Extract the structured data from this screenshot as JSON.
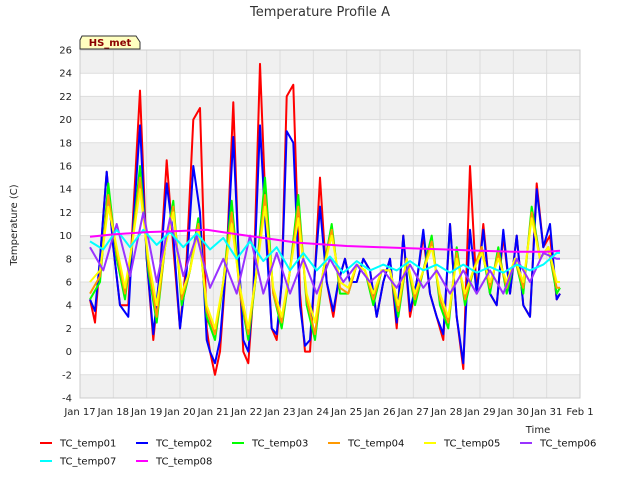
{
  "chart_data": {
    "type": "line",
    "title": "Temperature Profile A",
    "xlabel": "Time",
    "ylabel": "Temperature (C)",
    "badge": "HS_met",
    "ylim": [
      -4,
      26
    ],
    "yticks": [
      -4,
      -2,
      0,
      2,
      4,
      6,
      8,
      10,
      12,
      14,
      16,
      18,
      20,
      22,
      24,
      26
    ],
    "xlim": [
      0,
      15
    ],
    "xticks": [
      "Jan 17",
      "Jan 18",
      "Jan 19",
      "Jan 20",
      "Jan 21",
      "Jan 22",
      "Jan 23",
      "Jan 24",
      "Jan 25",
      "Jan 26",
      "Jan 27",
      "Jan 28",
      "Jan 29",
      "Jan 30",
      "Jan 31",
      "Feb 1"
    ],
    "grid": true,
    "legend_position": "bottom",
    "series": [
      {
        "name": "TC_temp01",
        "color": "#ff0000",
        "x": [
          0.3,
          0.45,
          0.6,
          0.8,
          1.0,
          1.2,
          1.45,
          1.6,
          1.8,
          2.0,
          2.2,
          2.4,
          2.6,
          2.8,
          3.0,
          3.2,
          3.4,
          3.6,
          3.8,
          3.9,
          4.05,
          4.2,
          4.4,
          4.6,
          4.75,
          4.9,
          5.05,
          5.2,
          5.4,
          5.6,
          5.75,
          5.9,
          6.05,
          6.2,
          6.4,
          6.6,
          6.75,
          6.9,
          7.05,
          7.2,
          7.4,
          7.6,
          7.75,
          7.95,
          8.1,
          8.3,
          8.5,
          8.7,
          8.9,
          9.1,
          9.3,
          9.5,
          9.7,
          9.9,
          10.1,
          10.3,
          10.5,
          10.7,
          10.9,
          11.1,
          11.3,
          11.5,
          11.7,
          11.9,
          12.1,
          12.3,
          12.5,
          12.7,
          12.9,
          13.1,
          13.3,
          13.5,
          13.7,
          13.9,
          14.1,
          14.3,
          14.4
        ],
        "values": [
          4.5,
          2.5,
          8,
          15.5,
          9,
          4,
          4,
          12,
          22.5,
          8,
          1,
          7,
          16.5,
          9,
          2,
          8,
          20,
          21,
          2,
          0,
          -2,
          0,
          8,
          21.5,
          9,
          0,
          -1,
          5,
          24.8,
          10,
          2,
          1,
          6,
          22,
          23,
          5,
          0,
          0,
          7,
          15,
          6,
          3,
          6,
          8,
          6,
          6,
          8,
          7,
          3,
          6,
          8,
          2,
          10,
          3,
          6,
          10,
          5,
          3,
          1,
          11,
          3,
          -1.5,
          16,
          5,
          11,
          5,
          4,
          10,
          5,
          10,
          4,
          3,
          14.5,
          9,
          10,
          4.5,
          5
        ]
      },
      {
        "name": "TC_temp02",
        "color": "#0000ff",
        "x": [
          0.3,
          0.45,
          0.6,
          0.8,
          1.0,
          1.2,
          1.45,
          1.6,
          1.8,
          2.0,
          2.2,
          2.4,
          2.6,
          2.8,
          3.0,
          3.2,
          3.4,
          3.6,
          3.8,
          3.9,
          4.05,
          4.2,
          4.4,
          4.6,
          4.75,
          4.9,
          5.05,
          5.2,
          5.4,
          5.6,
          5.75,
          5.9,
          6.05,
          6.2,
          6.4,
          6.6,
          6.75,
          6.9,
          7.05,
          7.2,
          7.4,
          7.6,
          7.75,
          7.95,
          8.1,
          8.3,
          8.5,
          8.7,
          8.9,
          9.1,
          9.3,
          9.5,
          9.7,
          9.9,
          10.1,
          10.3,
          10.5,
          10.7,
          10.9,
          11.1,
          11.3,
          11.5,
          11.7,
          11.9,
          12.1,
          12.3,
          12.5,
          12.7,
          12.9,
          13.1,
          13.3,
          13.5,
          13.7,
          13.9,
          14.1,
          14.3,
          14.4
        ],
        "values": [
          4.5,
          3.5,
          8,
          15.5,
          9,
          4,
          3,
          11,
          19.5,
          8,
          1.5,
          7,
          14.5,
          10,
          2,
          7,
          16,
          12,
          1,
          0,
          -1,
          1,
          8,
          18.5,
          9,
          1,
          0,
          5,
          19.5,
          9,
          2,
          1.5,
          6,
          19,
          18,
          4,
          0.5,
          1,
          7,
          12.5,
          6,
          3.5,
          6,
          8,
          6,
          6,
          8,
          7,
          3,
          6,
          8,
          2.5,
          10,
          3.5,
          6,
          10.5,
          5,
          3,
          1.5,
          11,
          3,
          -1,
          10.5,
          5,
          10.5,
          5,
          4,
          10.5,
          5,
          10,
          4,
          3,
          14,
          9,
          11,
          4.5,
          5
        ]
      },
      {
        "name": "TC_temp03",
        "color": "#00ff00",
        "x": [
          0.3,
          0.6,
          0.85,
          1.1,
          1.35,
          1.55,
          1.8,
          2.05,
          2.3,
          2.55,
          2.8,
          3.05,
          3.3,
          3.55,
          3.8,
          4.05,
          4.3,
          4.55,
          4.8,
          5.05,
          5.3,
          5.55,
          5.8,
          6.05,
          6.3,
          6.55,
          6.8,
          7.05,
          7.3,
          7.55,
          7.8,
          8.05,
          8.3,
          8.55,
          8.8,
          9.05,
          9.3,
          9.55,
          9.8,
          10.05,
          10.3,
          10.55,
          10.8,
          11.05,
          11.3,
          11.55,
          11.8,
          12.05,
          12.3,
          12.55,
          12.8,
          13.05,
          13.3,
          13.55,
          13.8,
          14.05,
          14.3,
          14.4
        ],
        "values": [
          4.5,
          6,
          14.5,
          8,
          4.5,
          9,
          16,
          7,
          2.5,
          9,
          13,
          4,
          7,
          11.5,
          3,
          1,
          6,
          13,
          5,
          1,
          7,
          15,
          5,
          2,
          7,
          13.5,
          4,
          1,
          7,
          11,
          5,
          5,
          7.5,
          7,
          4,
          7,
          7,
          3,
          8,
          4,
          7,
          10,
          4,
          2,
          9,
          4,
          7,
          9,
          5,
          9,
          5,
          8,
          5,
          12.5,
          8,
          9,
          5,
          5.5
        ]
      },
      {
        "name": "TC_temp04",
        "color": "#ff9900",
        "x": [
          0.3,
          0.6,
          0.85,
          1.1,
          1.35,
          1.55,
          1.8,
          2.05,
          2.3,
          2.55,
          2.8,
          3.05,
          3.3,
          3.55,
          3.8,
          4.05,
          4.3,
          4.55,
          4.8,
          5.05,
          5.3,
          5.55,
          5.8,
          6.05,
          6.3,
          6.55,
          6.8,
          7.05,
          7.3,
          7.55,
          7.8,
          8.05,
          8.3,
          8.55,
          8.8,
          9.05,
          9.3,
          9.55,
          9.8,
          10.05,
          10.3,
          10.55,
          10.8,
          11.05,
          11.3,
          11.55,
          11.8,
          12.05,
          12.3,
          12.55,
          12.8,
          13.05,
          13.3,
          13.55,
          13.8,
          14.05,
          14.3,
          14.4
        ],
        "values": [
          5,
          6.5,
          13.5,
          8.5,
          5,
          9,
          15,
          7.5,
          3,
          9,
          12.5,
          4.5,
          7,
          11,
          3.5,
          1.5,
          6,
          12,
          5,
          1.5,
          7,
          13.5,
          5,
          2.5,
          7,
          12.5,
          4.5,
          1.5,
          7,
          10.5,
          5.5,
          5,
          7.5,
          7,
          4.5,
          7,
          7,
          3.5,
          8,
          4.5,
          7,
          9.5,
          4.5,
          2.5,
          8.5,
          4.5,
          7,
          9,
          5.5,
          8.5,
          5.5,
          8,
          5.5,
          12,
          8,
          9,
          5.5,
          5.5
        ]
      },
      {
        "name": "TC_temp05",
        "color": "#ffff00",
        "x": [
          0.3,
          0.6,
          0.85,
          1.1,
          1.35,
          1.55,
          1.8,
          2.05,
          2.3,
          2.55,
          2.8,
          3.05,
          3.3,
          3.55,
          3.8,
          4.05,
          4.3,
          4.55,
          4.8,
          5.05,
          5.3,
          5.55,
          5.8,
          6.05,
          6.3,
          6.55,
          6.8,
          7.05,
          7.3,
          7.55,
          7.8,
          8.05,
          8.3,
          8.55,
          8.8,
          9.05,
          9.3,
          9.55,
          9.8,
          10.05,
          10.3,
          10.55,
          10.8,
          11.05,
          11.3,
          11.55,
          11.8,
          12.05,
          12.3,
          12.55,
          12.8,
          13.05,
          13.3,
          13.55,
          13.8,
          14.05,
          14.3,
          14.4
        ],
        "values": [
          6,
          7,
          12.5,
          9,
          5.5,
          9,
          14,
          8,
          4,
          9,
          12,
          5,
          7,
          10.5,
          4,
          2,
          6,
          11,
          5.5,
          2,
          7,
          12.5,
          5.5,
          3,
          7,
          11.5,
          5,
          2.5,
          7,
          10,
          6,
          5.5,
          7.5,
          7,
          5,
          7,
          7,
          4,
          8,
          5,
          7,
          9,
          5,
          3,
          8,
          5,
          7,
          8.5,
          6,
          8,
          6,
          8,
          6,
          11.5,
          8,
          9,
          6,
          6
        ]
      },
      {
        "name": "TC_temp06",
        "color": "#9933ff",
        "x": [
          0.3,
          0.7,
          1.1,
          1.5,
          1.9,
          2.3,
          2.7,
          3.1,
          3.5,
          3.9,
          4.3,
          4.7,
          5.1,
          5.5,
          5.9,
          6.3,
          6.7,
          7.1,
          7.5,
          7.9,
          8.3,
          8.7,
          9.1,
          9.5,
          9.9,
          10.3,
          10.7,
          11.1,
          11.5,
          11.9,
          12.3,
          12.7,
          13.1,
          13.5,
          13.9,
          14.3,
          14.4
        ],
        "values": [
          9,
          7,
          11,
          6.5,
          12,
          6,
          11.5,
          6.5,
          10,
          5.5,
          8,
          5,
          10,
          5,
          8.5,
          5,
          8,
          5,
          8,
          6,
          7.5,
          6,
          7,
          5.5,
          7.5,
          5.5,
          7,
          5,
          7,
          5,
          7,
          5,
          8,
          6,
          8.5,
          8,
          8
        ]
      },
      {
        "name": "TC_temp07",
        "color": "#00ffff",
        "x": [
          0.3,
          0.7,
          1.1,
          1.5,
          1.9,
          2.3,
          2.7,
          3.1,
          3.5,
          3.9,
          4.3,
          4.7,
          5.1,
          5.5,
          5.9,
          6.3,
          6.7,
          7.1,
          7.5,
          7.9,
          8.3,
          8.7,
          9.1,
          9.5,
          9.9,
          10.3,
          10.7,
          11.1,
          11.5,
          11.9,
          12.3,
          12.7,
          13.1,
          13.5,
          13.9,
          14.3,
          14.4
        ],
        "values": [
          9.5,
          8.8,
          10.5,
          9,
          10.5,
          9.2,
          10.3,
          9,
          10.2,
          8.8,
          9.8,
          8,
          9.5,
          7.8,
          9,
          7,
          8.5,
          7,
          8.2,
          6.8,
          7.8,
          7,
          7.5,
          7,
          7.8,
          7,
          7.5,
          6.8,
          7.5,
          6.8,
          7.3,
          6.8,
          7.5,
          7,
          7.5,
          8.5,
          8.5
        ]
      },
      {
        "name": "TC_temp08",
        "color": "#ff00ff",
        "x": [
          0.3,
          1.0,
          2.0,
          3.0,
          3.8,
          4.5,
          5.0,
          5.5,
          6.0,
          6.5,
          7.0,
          8.0,
          9.0,
          10.0,
          11.0,
          12.0,
          13.0,
          14.0,
          14.4
        ],
        "values": [
          9.9,
          10.1,
          10.3,
          10.4,
          10.5,
          10.2,
          10.0,
          9.8,
          9.6,
          9.4,
          9.3,
          9.1,
          9.0,
          8.9,
          8.8,
          8.7,
          8.6,
          8.6,
          8.7
        ]
      }
    ]
  }
}
